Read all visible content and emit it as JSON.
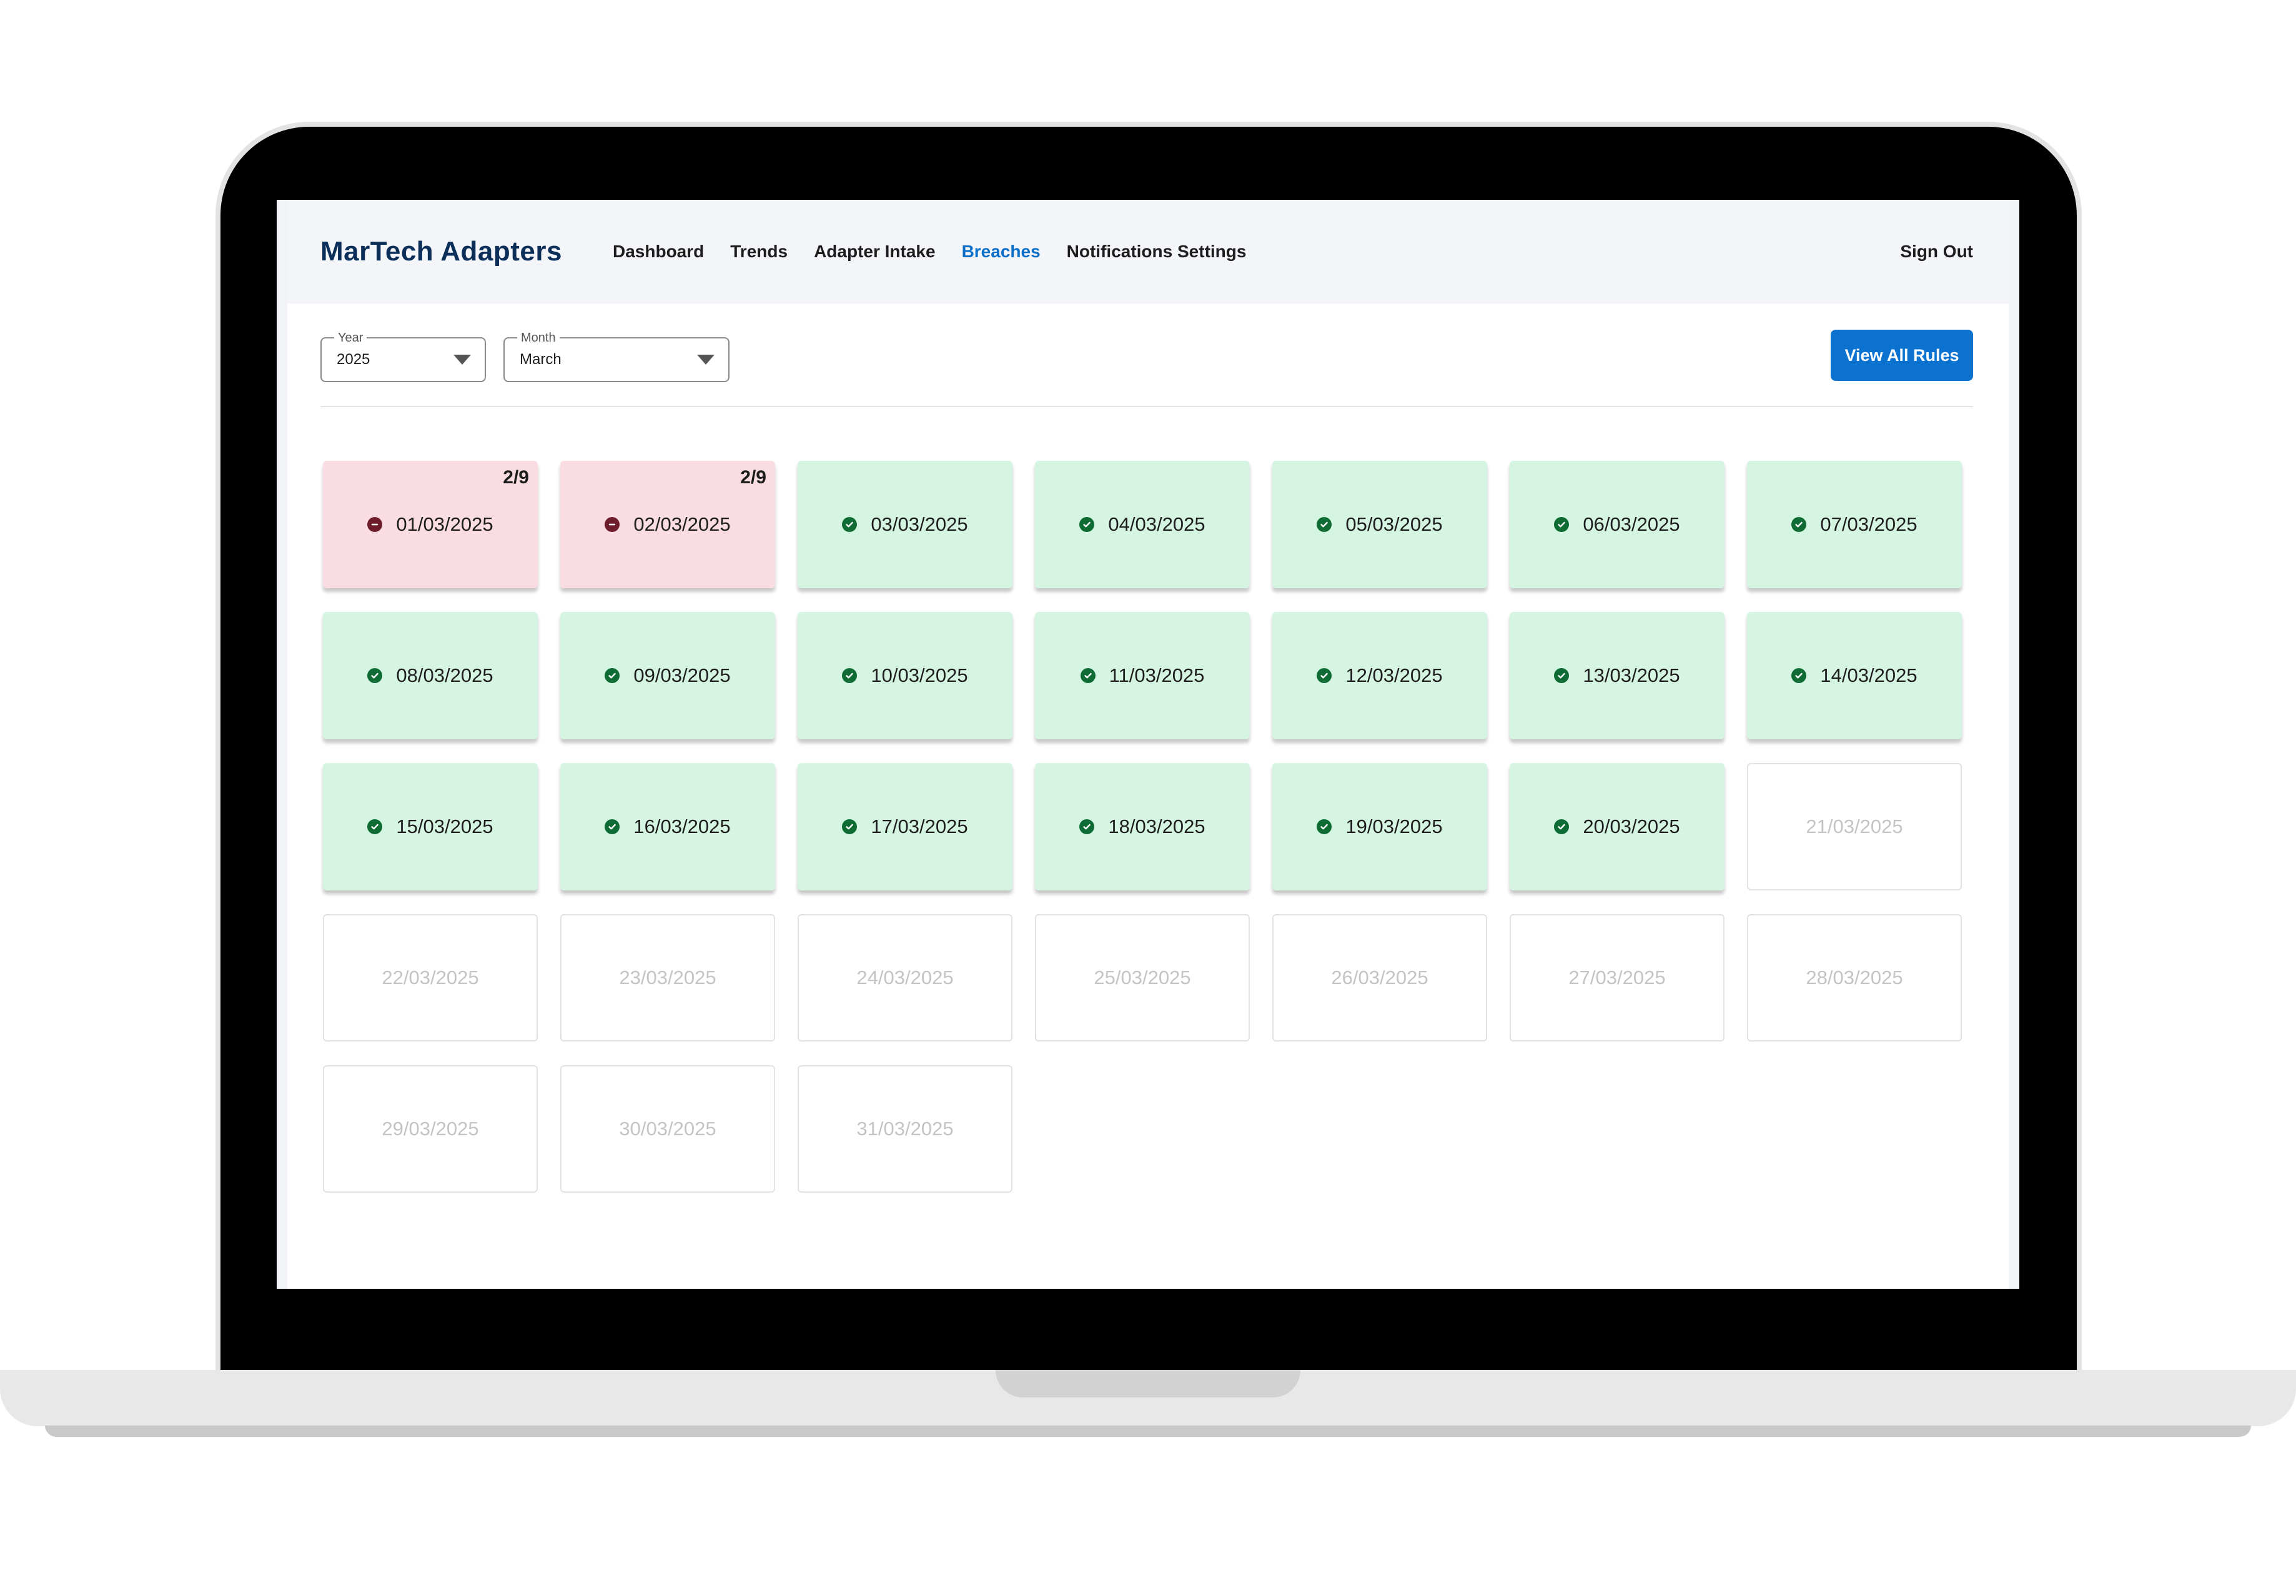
{
  "app": {
    "brand": "MarTech Adapters",
    "nav": [
      {
        "label": "Dashboard",
        "active": false
      },
      {
        "label": "Trends",
        "active": false
      },
      {
        "label": "Adapter Intake",
        "active": false
      },
      {
        "label": "Breaches",
        "active": true
      },
      {
        "label": "Notifications Settings",
        "active": false
      }
    ],
    "sign_out": "Sign Out"
  },
  "filters": {
    "year": {
      "label": "Year",
      "value": "2025"
    },
    "month": {
      "label": "Month",
      "value": "March"
    }
  },
  "actions": {
    "view_all_rules": "View All Rules"
  },
  "colors": {
    "accent": "#0b72d0",
    "pass_bg": "#d5f5e2",
    "fail_bg": "#f9dde2",
    "pass_icon": "#0e6b34",
    "fail_icon": "#6e1d2b"
  },
  "calendar": {
    "days": [
      {
        "date": "01/03/2025",
        "status": "fail",
        "badge": "2/9"
      },
      {
        "date": "02/03/2025",
        "status": "fail",
        "badge": "2/9"
      },
      {
        "date": "03/03/2025",
        "status": "pass"
      },
      {
        "date": "04/03/2025",
        "status": "pass"
      },
      {
        "date": "05/03/2025",
        "status": "pass"
      },
      {
        "date": "06/03/2025",
        "status": "pass"
      },
      {
        "date": "07/03/2025",
        "status": "pass"
      },
      {
        "date": "08/03/2025",
        "status": "pass"
      },
      {
        "date": "09/03/2025",
        "status": "pass"
      },
      {
        "date": "10/03/2025",
        "status": "pass"
      },
      {
        "date": "11/03/2025",
        "status": "pass"
      },
      {
        "date": "12/03/2025",
        "status": "pass"
      },
      {
        "date": "13/03/2025",
        "status": "pass"
      },
      {
        "date": "14/03/2025",
        "status": "pass"
      },
      {
        "date": "15/03/2025",
        "status": "pass"
      },
      {
        "date": "16/03/2025",
        "status": "pass"
      },
      {
        "date": "17/03/2025",
        "status": "pass"
      },
      {
        "date": "18/03/2025",
        "status": "pass"
      },
      {
        "date": "19/03/2025",
        "status": "pass"
      },
      {
        "date": "20/03/2025",
        "status": "pass"
      },
      {
        "date": "21/03/2025",
        "status": "future"
      },
      {
        "date": "22/03/2025",
        "status": "future"
      },
      {
        "date": "23/03/2025",
        "status": "future"
      },
      {
        "date": "24/03/2025",
        "status": "future"
      },
      {
        "date": "25/03/2025",
        "status": "future"
      },
      {
        "date": "26/03/2025",
        "status": "future"
      },
      {
        "date": "27/03/2025",
        "status": "future"
      },
      {
        "date": "28/03/2025",
        "status": "future"
      },
      {
        "date": "29/03/2025",
        "status": "future"
      },
      {
        "date": "30/03/2025",
        "status": "future"
      },
      {
        "date": "31/03/2025",
        "status": "future"
      }
    ]
  }
}
